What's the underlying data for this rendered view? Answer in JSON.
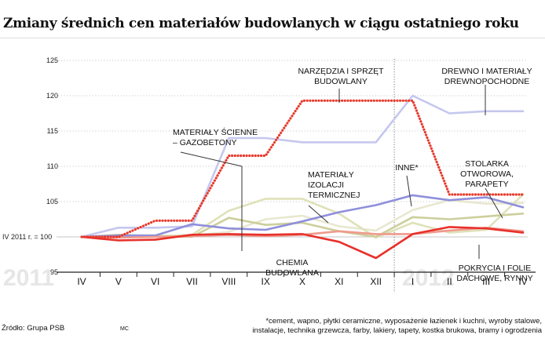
{
  "title": "Zmiany średnich cen materiałów budowlanych w ciągu ostatniego roku",
  "baseline_label": "IV 2011 r. = 100",
  "year_labels": [
    "2011",
    "2012"
  ],
  "source": "Źródło: Grupa PSB",
  "credit": "MC",
  "footnote": [
    "*cement, wapno, płytki ceramiczne, wyposażenie łazienek i kuchni, wyroby stalowe,",
    "instalacje, technika grzewcza, farby, lakiery, tapety, kostka brukowa, bramy i ogrodzenia"
  ],
  "chart_data": {
    "type": "line",
    "title": "Zmiany średnich cen materiałów budowlanych w ciągu ostatniego roku",
    "categories": [
      "IV",
      "V",
      "VI",
      "VII",
      "VIII",
      "IX",
      "X",
      "XI",
      "XII",
      "I",
      "II",
      "III",
      "IV"
    ],
    "ylim": [
      95,
      125
    ],
    "yticks": [
      95,
      100,
      105,
      110,
      115,
      120,
      125
    ],
    "baseline": 100,
    "grid": "horizontal-dotted",
    "series": [
      {
        "name": "NARZĘDZIA I SPRZĘT BUDOWLANY",
        "label_lines": [
          "NARZĘDZIA I SPRZĘT",
          "BUDOWLANY"
        ],
        "color": "#e8392b",
        "style": "dotted",
        "values": [
          100,
          100,
          102.3,
          102.3,
          111.5,
          111.5,
          119.3,
          119.3,
          119.3,
          119.3,
          106,
          106,
          106
        ]
      },
      {
        "name": "DREWNO I MATERIAŁY DREWNOPOCHODNE",
        "label_lines": [
          "DREWNO I MATERIAŁY",
          "DREWNOPOCHODNE"
        ],
        "color": "#c5c7ee",
        "style": "solid",
        "values": [
          100,
          101.3,
          101.3,
          101.5,
          114,
          114,
          113.4,
          113.4,
          113.4,
          120,
          117.5,
          117.8,
          117.8
        ]
      },
      {
        "name": "MATERIAŁY ŚCIENNE – GAZOBETONY",
        "label_lines": [
          "MATERIAŁY ŚCIENNE",
          "– GAZOBETONY"
        ],
        "color": "#cdcf9c",
        "style": "solid",
        "values": [
          100,
          100.3,
          100.1,
          100,
          102.7,
          101.7,
          102,
          100.8,
          100,
          102.8,
          102.5,
          102.9,
          103.3
        ]
      },
      {
        "name": "MATERIAŁY IZOLACJI TERMICZNEJ",
        "label_lines": [
          "MATERIAŁY",
          "IZOLACJI",
          "TERMICZNEJ"
        ],
        "color": "#dfe1b8",
        "style": "solid",
        "values": [
          100,
          100.2,
          100,
          100.3,
          103.7,
          105.4,
          105.4,
          103.3,
          99.9,
          102,
          100.6,
          101,
          106
        ]
      },
      {
        "name": "INNE*",
        "label_lines": [
          "INNE*"
        ],
        "color": "#8f8fdc",
        "style": "solid",
        "values": [
          100,
          100.2,
          100.2,
          101.8,
          101.2,
          101,
          102.2,
          103.5,
          104.5,
          105.9,
          105.2,
          105.6,
          104.2
        ]
      },
      {
        "name": "STOLARKA OTWOROWA, PARAPETY",
        "label_lines": [
          "STOLARKA",
          "OTWOROWA,",
          "PARAPETY"
        ],
        "color": "#e8e8d0",
        "style": "solid",
        "values": [
          100,
          100.2,
          100.2,
          100.2,
          100.7,
          102.5,
          103,
          101.5,
          100.9,
          103.8,
          105.2,
          104.7,
          104.8
        ]
      },
      {
        "name": "CHEMIA BUDOWLANA",
        "label_lines": [
          "CHEMIA",
          "BUDOWLANA"
        ],
        "color": "#e8302b",
        "style": "solid",
        "values": [
          100,
          99.5,
          99.6,
          100.3,
          100.4,
          100.3,
          100.4,
          99.3,
          97,
          100.4,
          101.4,
          101.2,
          100.6
        ]
      },
      {
        "name": "POKRYCIA I FOLIE DACHOWE, RYNNY",
        "label_lines": [
          "POKRYCIA I FOLIE",
          "DACHOWE, RYNNY"
        ],
        "color": "#ef9a8c",
        "style": "solid",
        "values": [
          100,
          99.9,
          100,
          100.1,
          100.3,
          100.1,
          100.3,
          100.8,
          100.4,
          100.4,
          100.9,
          101.3,
          100.8
        ]
      }
    ]
  }
}
